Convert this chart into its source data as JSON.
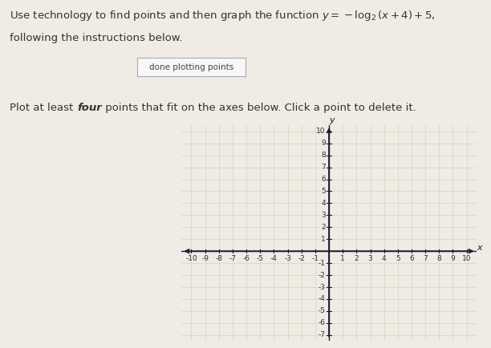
{
  "button_text": "done plotting points",
  "xlim": [
    -10,
    10
  ],
  "ylim": [
    -7,
    10
  ],
  "x_ticks": [
    -10,
    -9,
    -8,
    -7,
    -6,
    -5,
    -4,
    -3,
    -2,
    -1,
    1,
    2,
    3,
    4,
    5,
    6,
    7,
    8,
    9,
    10
  ],
  "y_ticks": [
    -7,
    -6,
    -5,
    -4,
    -3,
    -2,
    -1,
    1,
    2,
    3,
    4,
    5,
    6,
    7,
    8,
    9,
    10
  ],
  "background_color": "#f0ebe4",
  "grid_color": "#c5dcc0",
  "axis_color": "#1a1a2e",
  "tick_label_color": "#333333",
  "font_size_ticks": 6.5,
  "curve_color": "#1a6b1a",
  "curve_lw": 1.2,
  "title_line1": "Use technology to find points and then graph the function $y = -\\log_2(x + 4) + 5$,",
  "title_line2": "following the instructions below.",
  "instruction_plain1": "Plot at least ",
  "instruction_italic": "four",
  "instruction_plain2": " points that fit on the axes below. Click a point to delete it."
}
